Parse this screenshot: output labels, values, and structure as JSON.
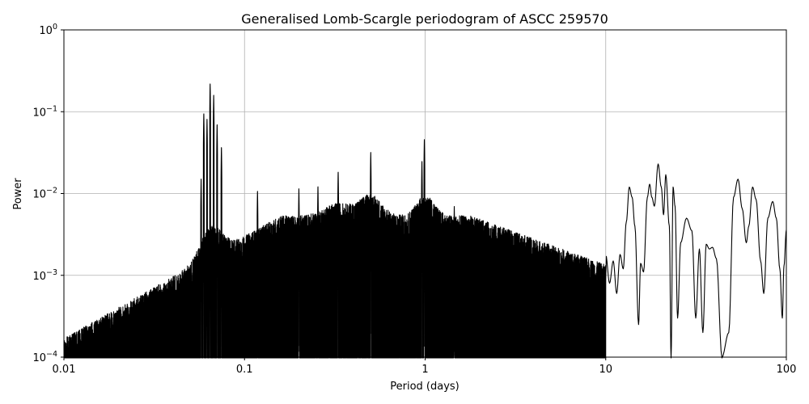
{
  "chart_data": {
    "type": "line",
    "title": "Generalised Lomb-Scargle periodogram of ASCC 259570",
    "xlabel": "Period (days)",
    "ylabel": "Power",
    "xscale": "log",
    "yscale": "log",
    "xlim": [
      0.01,
      100
    ],
    "ylim": [
      0.0001,
      1
    ],
    "grid": true,
    "line_color": "#000000",
    "x_ticks": [
      {
        "value": 0.01,
        "label": "0.01"
      },
      {
        "value": 0.1,
        "label": "0.1"
      },
      {
        "value": 1,
        "label": "1"
      },
      {
        "value": 10,
        "label": "10"
      },
      {
        "value": 100,
        "label": "100"
      }
    ],
    "y_ticks": [
      {
        "value": 0.0001,
        "base": "10",
        "exp": "−4"
      },
      {
        "value": 0.001,
        "base": "10",
        "exp": "−3"
      },
      {
        "value": 0.01,
        "base": "10",
        "exp": "−2"
      },
      {
        "value": 0.1,
        "base": "10",
        "exp": "−1"
      },
      {
        "value": 1,
        "base": "10",
        "exp": "0"
      }
    ],
    "series": [
      {
        "peaks": [
          {
            "period": 0.0575,
            "power": 0.015
          },
          {
            "period": 0.0595,
            "power": 0.098
          },
          {
            "period": 0.062,
            "power": 0.082
          },
          {
            "period": 0.0645,
            "power": 0.225
          },
          {
            "period": 0.0675,
            "power": 0.16
          },
          {
            "period": 0.0705,
            "power": 0.072
          },
          {
            "period": 0.0745,
            "power": 0.038
          },
          {
            "period": 0.118,
            "power": 0.011
          },
          {
            "period": 0.2,
            "power": 0.0115
          },
          {
            "period": 0.255,
            "power": 0.0125
          },
          {
            "period": 0.33,
            "power": 0.019
          },
          {
            "period": 0.5,
            "power": 0.032
          },
          {
            "period": 0.99,
            "power": 0.046
          },
          {
            "period": 0.96,
            "power": 0.025
          },
          {
            "period": 1.45,
            "power": 0.007
          }
        ],
        "long_period_curve": [
          [
            10,
            0.0018
          ],
          [
            10.5,
            0.0008
          ],
          [
            11,
            0.0015
          ],
          [
            11.5,
            0.0006
          ],
          [
            12,
            0.0018
          ],
          [
            12.5,
            0.0012
          ],
          [
            13,
            0.0045
          ],
          [
            13.5,
            0.012
          ],
          [
            14,
            0.009
          ],
          [
            14.5,
            0.004
          ],
          [
            15.2,
            0.00025
          ],
          [
            15.6,
            0.0014
          ],
          [
            16.2,
            0.0011
          ],
          [
            17,
            0.009
          ],
          [
            17.5,
            0.013
          ],
          [
            18,
            0.009
          ],
          [
            18.6,
            0.007
          ],
          [
            19.5,
            0.023
          ],
          [
            20.3,
            0.012
          ],
          [
            20.9,
            0.0055
          ],
          [
            21.5,
            0.017
          ],
          [
            22.5,
            0.004
          ],
          [
            23,
            0.0001
          ],
          [
            23.6,
            0.012
          ],
          [
            24.2,
            0.007
          ],
          [
            25,
            0.0003
          ],
          [
            26,
            0.0025
          ],
          [
            28,
            0.005
          ],
          [
            30,
            0.0035
          ],
          [
            31.5,
            0.0003
          ],
          [
            33,
            0.0021
          ],
          [
            34.5,
            0.0002
          ],
          [
            36,
            0.0024
          ],
          [
            37.5,
            0.0021
          ],
          [
            39,
            0.0022
          ],
          [
            41,
            0.0016
          ],
          [
            44,
            0.0001
          ],
          [
            48,
            0.0002
          ],
          [
            51,
            0.009
          ],
          [
            54,
            0.015
          ],
          [
            57,
            0.0065
          ],
          [
            60,
            0.0025
          ],
          [
            62,
            0.004
          ],
          [
            65,
            0.012
          ],
          [
            68,
            0.0085
          ],
          [
            72,
            0.0015
          ],
          [
            75,
            0.0006
          ],
          [
            79,
            0.005
          ],
          [
            84,
            0.008
          ],
          [
            88,
            0.005
          ],
          [
            92,
            0.0012
          ],
          [
            95,
            0.0003
          ],
          [
            97,
            0.0013
          ],
          [
            100,
            0.0036
          ]
        ]
      }
    ]
  }
}
